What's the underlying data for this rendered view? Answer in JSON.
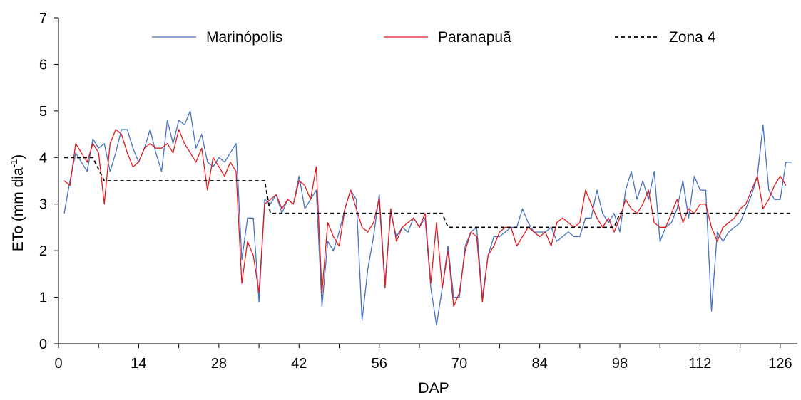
{
  "chart_data": {
    "type": "line",
    "xlabel": "DAP",
    "ylabel_main": "ETo (mm dia",
    "ylabel_sup": "-1",
    "ylabel_close": ")",
    "xlim": [
      0,
      129
    ],
    "ylim": [
      0,
      7
    ],
    "xticks": [
      0,
      14,
      28,
      42,
      56,
      70,
      84,
      98,
      112,
      126
    ],
    "yticks": [
      0,
      1,
      2,
      3,
      4,
      5,
      6,
      7
    ],
    "grid": false,
    "legend_position": "top",
    "series": [
      {
        "name": "Marinópolis",
        "color": "#4472C4",
        "style": "solid",
        "points": [
          [
            1,
            2.8
          ],
          [
            2,
            3.5
          ],
          [
            3,
            4.1
          ],
          [
            4,
            3.9
          ],
          [
            5,
            3.7
          ],
          [
            6,
            4.4
          ],
          [
            7,
            4.2
          ],
          [
            8,
            4.3
          ],
          [
            9,
            3.7
          ],
          [
            10,
            4.1
          ],
          [
            11,
            4.6
          ],
          [
            12,
            4.6
          ],
          [
            13,
            4.2
          ],
          [
            14,
            3.9
          ],
          [
            15,
            4.2
          ],
          [
            16,
            4.6
          ],
          [
            17,
            4.1
          ],
          [
            18,
            3.7
          ],
          [
            19,
            4.8
          ],
          [
            20,
            4.3
          ],
          [
            21,
            4.8
          ],
          [
            22,
            4.7
          ],
          [
            23,
            5.0
          ],
          [
            24,
            4.2
          ],
          [
            25,
            4.5
          ],
          [
            26,
            3.9
          ],
          [
            27,
            3.8
          ],
          [
            28,
            4.0
          ],
          [
            29,
            3.9
          ],
          [
            30,
            4.1
          ],
          [
            31,
            4.3
          ],
          [
            32,
            1.8
          ],
          [
            33,
            2.7
          ],
          [
            34,
            2.7
          ],
          [
            35,
            0.9
          ],
          [
            36,
            3.1
          ],
          [
            37,
            3.0
          ],
          [
            38,
            3.2
          ],
          [
            39,
            2.8
          ],
          [
            40,
            3.1
          ],
          [
            41,
            3.0
          ],
          [
            42,
            3.6
          ],
          [
            43,
            2.9
          ],
          [
            44,
            3.1
          ],
          [
            45,
            3.3
          ],
          [
            46,
            0.8
          ],
          [
            47,
            2.2
          ],
          [
            48,
            2.0
          ],
          [
            49,
            2.4
          ],
          [
            50,
            2.9
          ],
          [
            51,
            3.3
          ],
          [
            52,
            3.1
          ],
          [
            53,
            0.5
          ],
          [
            54,
            1.6
          ],
          [
            55,
            2.3
          ],
          [
            56,
            3.2
          ],
          [
            57,
            1.3
          ],
          [
            58,
            2.8
          ],
          [
            59,
            2.3
          ],
          [
            60,
            2.5
          ],
          [
            61,
            2.4
          ],
          [
            62,
            2.7
          ],
          [
            63,
            2.5
          ],
          [
            64,
            2.7
          ],
          [
            65,
            1.2
          ],
          [
            66,
            0.4
          ],
          [
            67,
            1.2
          ],
          [
            68,
            2.1
          ],
          [
            69,
            1.0
          ],
          [
            70,
            1.0
          ],
          [
            71,
            2.1
          ],
          [
            72,
            2.4
          ],
          [
            73,
            2.5
          ],
          [
            74,
            1.0
          ],
          [
            75,
            1.9
          ],
          [
            76,
            2.3
          ],
          [
            77,
            2.3
          ],
          [
            78,
            2.4
          ],
          [
            79,
            2.5
          ],
          [
            80,
            2.5
          ],
          [
            81,
            2.9
          ],
          [
            82,
            2.6
          ],
          [
            83,
            2.4
          ],
          [
            84,
            2.4
          ],
          [
            85,
            2.4
          ],
          [
            86,
            2.5
          ],
          [
            87,
            2.2
          ],
          [
            88,
            2.3
          ],
          [
            89,
            2.4
          ],
          [
            90,
            2.3
          ],
          [
            91,
            2.3
          ],
          [
            92,
            2.7
          ],
          [
            93,
            2.7
          ],
          [
            94,
            3.3
          ],
          [
            95,
            2.8
          ],
          [
            96,
            2.6
          ],
          [
            97,
            2.8
          ],
          [
            98,
            2.4
          ],
          [
            99,
            3.3
          ],
          [
            100,
            3.7
          ],
          [
            101,
            3.1
          ],
          [
            102,
            3.5
          ],
          [
            103,
            3.1
          ],
          [
            104,
            3.7
          ],
          [
            105,
            2.2
          ],
          [
            106,
            2.5
          ],
          [
            107,
            2.6
          ],
          [
            108,
            2.9
          ],
          [
            109,
            3.5
          ],
          [
            110,
            2.7
          ],
          [
            111,
            3.6
          ],
          [
            112,
            3.3
          ],
          [
            113,
            3.3
          ],
          [
            114,
            0.7
          ],
          [
            115,
            2.4
          ],
          [
            116,
            2.2
          ],
          [
            117,
            2.4
          ],
          [
            118,
            2.5
          ],
          [
            119,
            2.6
          ],
          [
            120,
            2.9
          ],
          [
            121,
            3.2
          ],
          [
            122,
            3.6
          ],
          [
            123,
            4.7
          ],
          [
            124,
            3.3
          ],
          [
            125,
            3.1
          ],
          [
            126,
            3.1
          ],
          [
            127,
            3.9
          ],
          [
            128,
            3.9
          ]
        ]
      },
      {
        "name": "Paranapuã",
        "color": "#E31A1C",
        "style": "solid",
        "points": [
          [
            1,
            3.5
          ],
          [
            2,
            3.4
          ],
          [
            3,
            4.3
          ],
          [
            4,
            4.1
          ],
          [
            5,
            3.9
          ],
          [
            6,
            4.3
          ],
          [
            7,
            4.1
          ],
          [
            8,
            3.0
          ],
          [
            9,
            4.3
          ],
          [
            10,
            4.6
          ],
          [
            11,
            4.5
          ],
          [
            12,
            4.1
          ],
          [
            13,
            3.8
          ],
          [
            14,
            3.9
          ],
          [
            15,
            4.2
          ],
          [
            16,
            4.3
          ],
          [
            17,
            4.2
          ],
          [
            18,
            4.2
          ],
          [
            19,
            4.3
          ],
          [
            20,
            4.1
          ],
          [
            21,
            4.6
          ],
          [
            22,
            4.3
          ],
          [
            23,
            4.1
          ],
          [
            24,
            3.9
          ],
          [
            25,
            4.2
          ],
          [
            26,
            3.3
          ],
          [
            27,
            4.0
          ],
          [
            28,
            3.8
          ],
          [
            29,
            3.6
          ],
          [
            30,
            3.9
          ],
          [
            31,
            3.7
          ],
          [
            32,
            1.3
          ],
          [
            33,
            2.2
          ],
          [
            34,
            1.9
          ],
          [
            35,
            1.1
          ],
          [
            36,
            3.0
          ],
          [
            37,
            3.1
          ],
          [
            38,
            3.2
          ],
          [
            39,
            2.9
          ],
          [
            40,
            3.1
          ],
          [
            41,
            3.0
          ],
          [
            42,
            3.5
          ],
          [
            43,
            3.4
          ],
          [
            44,
            3.1
          ],
          [
            45,
            3.8
          ],
          [
            46,
            1.1
          ],
          [
            47,
            2.6
          ],
          [
            48,
            2.3
          ],
          [
            49,
            2.1
          ],
          [
            50,
            2.9
          ],
          [
            51,
            3.3
          ],
          [
            52,
            2.9
          ],
          [
            53,
            2.5
          ],
          [
            54,
            2.4
          ],
          [
            55,
            2.6
          ],
          [
            56,
            3.1
          ],
          [
            57,
            1.2
          ],
          [
            58,
            2.9
          ],
          [
            59,
            2.2
          ],
          [
            60,
            2.5
          ],
          [
            61,
            2.6
          ],
          [
            62,
            2.7
          ],
          [
            63,
            2.5
          ],
          [
            64,
            2.8
          ],
          [
            65,
            1.3
          ],
          [
            66,
            2.6
          ],
          [
            67,
            1.2
          ],
          [
            68,
            2.0
          ],
          [
            69,
            0.8
          ],
          [
            70,
            1.1
          ],
          [
            71,
            2.0
          ],
          [
            72,
            2.4
          ],
          [
            73,
            2.3
          ],
          [
            74,
            0.9
          ],
          [
            75,
            1.9
          ],
          [
            76,
            2.1
          ],
          [
            77,
            2.4
          ],
          [
            78,
            2.5
          ],
          [
            79,
            2.5
          ],
          [
            80,
            2.1
          ],
          [
            81,
            2.3
          ],
          [
            82,
            2.5
          ],
          [
            83,
            2.4
          ],
          [
            84,
            2.3
          ],
          [
            85,
            2.4
          ],
          [
            86,
            2.1
          ],
          [
            87,
            2.6
          ],
          [
            88,
            2.7
          ],
          [
            89,
            2.6
          ],
          [
            90,
            2.5
          ],
          [
            91,
            2.6
          ],
          [
            92,
            3.3
          ],
          [
            93,
            3.0
          ],
          [
            94,
            2.7
          ],
          [
            95,
            2.5
          ],
          [
            96,
            2.7
          ],
          [
            97,
            2.4
          ],
          [
            98,
            2.7
          ],
          [
            99,
            3.1
          ],
          [
            100,
            2.9
          ],
          [
            101,
            2.8
          ],
          [
            102,
            3.0
          ],
          [
            103,
            3.3
          ],
          [
            104,
            2.6
          ],
          [
            105,
            2.5
          ],
          [
            106,
            2.5
          ],
          [
            107,
            2.8
          ],
          [
            108,
            3.1
          ],
          [
            109,
            2.6
          ],
          [
            110,
            2.9
          ],
          [
            111,
            2.8
          ],
          [
            112,
            3.0
          ],
          [
            113,
            3.0
          ],
          [
            114,
            2.5
          ],
          [
            115,
            2.2
          ],
          [
            116,
            2.5
          ],
          [
            117,
            2.6
          ],
          [
            118,
            2.7
          ],
          [
            119,
            2.9
          ],
          [
            120,
            3.0
          ],
          [
            121,
            3.3
          ],
          [
            122,
            3.6
          ],
          [
            123,
            2.9
          ],
          [
            124,
            3.1
          ],
          [
            125,
            3.4
          ],
          [
            126,
            3.6
          ],
          [
            127,
            3.4
          ]
        ]
      },
      {
        "name": "Zona 4",
        "color": "#000000",
        "style": "dashed",
        "points": [
          [
            1,
            4.0
          ],
          [
            6,
            4.0
          ],
          [
            8,
            3.5
          ],
          [
            36,
            3.5
          ],
          [
            37,
            2.8
          ],
          [
            67,
            2.8
          ],
          [
            68,
            2.5
          ],
          [
            97,
            2.5
          ],
          [
            98,
            2.8
          ],
          [
            128,
            2.8
          ]
        ]
      }
    ]
  }
}
